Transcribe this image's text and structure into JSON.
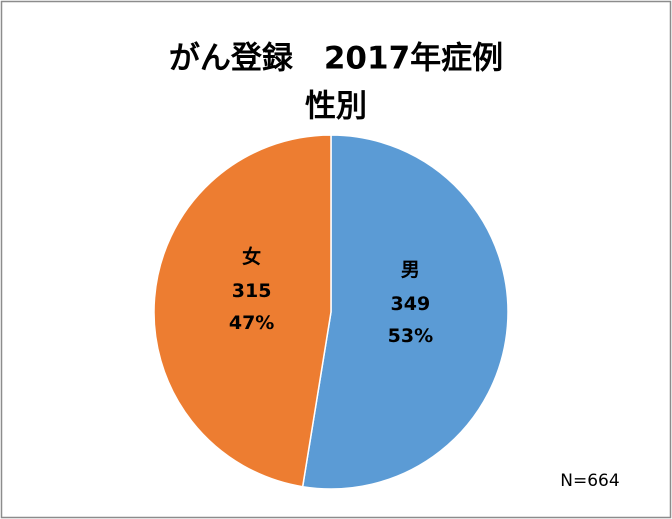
{
  "chart_data": {
    "type": "pie",
    "title": [
      "がん登録　2017年症例",
      "性別"
    ],
    "categories": [
      "男",
      "女"
    ],
    "values": [
      349,
      315
    ],
    "percent_labels": [
      "53%",
      "47%"
    ],
    "colors": [
      "#5b9bd5",
      "#ed7d31"
    ],
    "annotation": "N=664"
  }
}
